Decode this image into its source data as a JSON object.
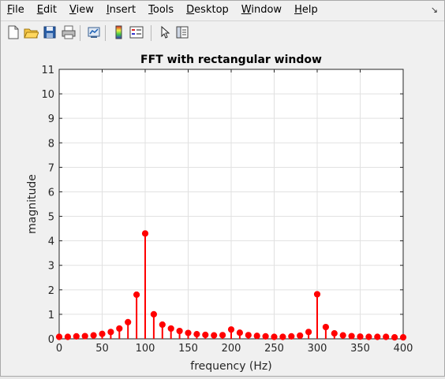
{
  "menu": {
    "items": [
      {
        "label": "File",
        "u": "F",
        "rest": "ile"
      },
      {
        "label": "Edit",
        "u": "E",
        "rest": "dit"
      },
      {
        "label": "View",
        "u": "V",
        "rest": "iew"
      },
      {
        "label": "Insert",
        "u": "I",
        "rest": "nsert"
      },
      {
        "label": "Tools",
        "u": "T",
        "rest": "ools"
      },
      {
        "label": "Desktop",
        "u": "D",
        "rest": "esktop"
      },
      {
        "label": "Window",
        "u": "W",
        "rest": "indow"
      },
      {
        "label": "Help",
        "u": "H",
        "rest": "elp"
      }
    ],
    "dock_arrow": "↘"
  },
  "toolbar": {
    "buttons": [
      "new-figure-icon",
      "open-file-icon",
      "save-icon",
      "print-icon",
      "link-plot-icon",
      "insert-colorbar-icon",
      "insert-legend-icon",
      "edit-plot-arrow-icon",
      "property-inspector-icon"
    ]
  },
  "colors": {
    "stem": "#ff0000",
    "marker": "#ff0000",
    "grid": "#e1e1e1",
    "axes_bg": "#ffffff"
  },
  "chart_data": {
    "type": "stem",
    "title": "FFT with rectangular window",
    "xlabel": "frequency (Hz)",
    "ylabel": "magnitude",
    "xlim": [
      0,
      400
    ],
    "ylim": [
      0,
      11
    ],
    "xticks": [
      0,
      50,
      100,
      150,
      200,
      250,
      300,
      350,
      400
    ],
    "yticks": [
      0,
      1,
      2,
      3,
      4,
      5,
      6,
      7,
      8,
      9,
      10,
      11
    ],
    "grid": true,
    "x": [
      0,
      10,
      20,
      30,
      40,
      50,
      60,
      70,
      80,
      90,
      100,
      110,
      120,
      130,
      140,
      150,
      160,
      170,
      180,
      190,
      200,
      210,
      220,
      230,
      240,
      250,
      260,
      270,
      280,
      290,
      300,
      310,
      320,
      330,
      340,
      350,
      360,
      370,
      380,
      390,
      400
    ],
    "y": [
      0.08,
      0.08,
      0.1,
      0.11,
      0.14,
      0.2,
      0.28,
      0.42,
      0.68,
      1.8,
      4.3,
      1.0,
      0.58,
      0.42,
      0.32,
      0.24,
      0.19,
      0.16,
      0.14,
      0.15,
      0.38,
      0.25,
      0.15,
      0.12,
      0.1,
      0.08,
      0.08,
      0.1,
      0.13,
      0.28,
      1.82,
      0.48,
      0.22,
      0.14,
      0.11,
      0.09,
      0.08,
      0.08,
      0.08,
      0.06,
      0.06
    ]
  }
}
